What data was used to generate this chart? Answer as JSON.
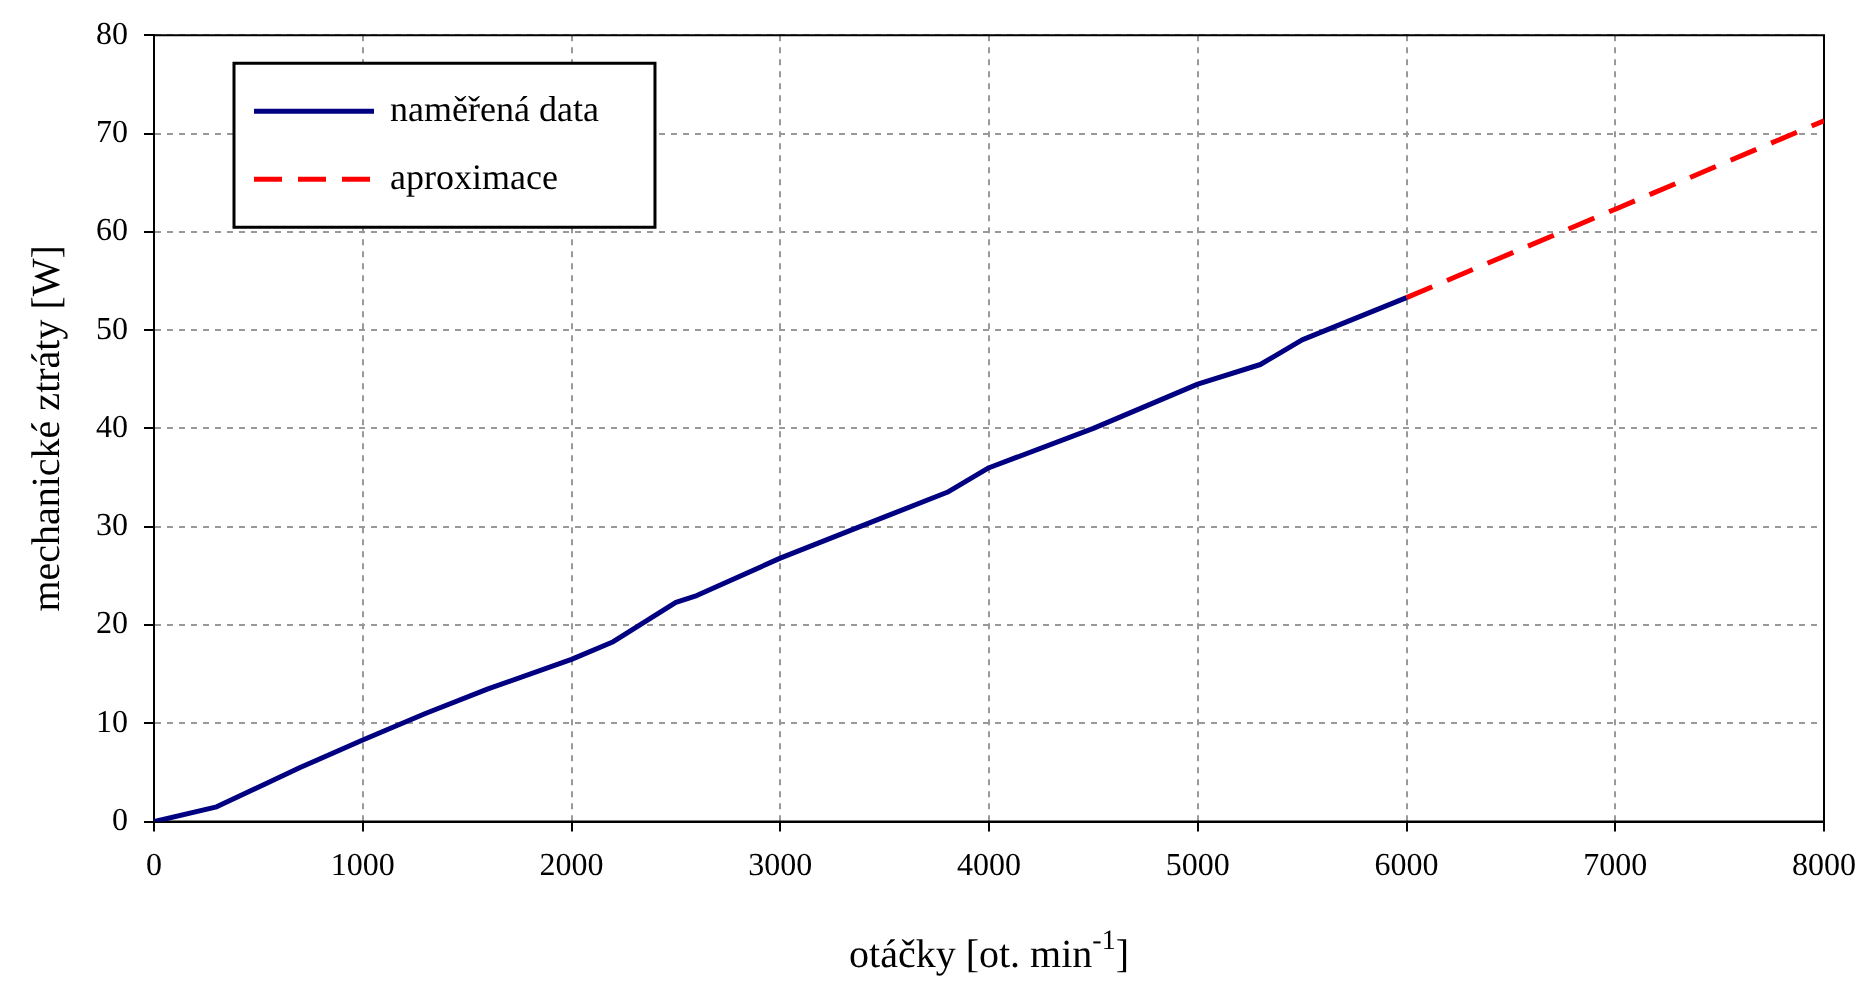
{
  "chart_data": {
    "type": "line",
    "xlabel": "otáčky [ot. min$^{-1}$]",
    "ylabel": "mechanické ztráty [W]",
    "xlim": [
      0,
      8000
    ],
    "xticks": [
      0,
      1000,
      2000,
      3000,
      4000,
      5000,
      6000,
      7000,
      8000
    ],
    "ylim": [
      0,
      80
    ],
    "yticks": [
      0,
      10,
      20,
      30,
      40,
      50,
      60,
      70,
      80
    ],
    "grid": true,
    "legend": "top left",
    "series": [
      {
        "name": "naměřená data",
        "color": "#000080",
        "line_style": "solid",
        "x": [
          0,
          300,
          700,
          1000,
          1300,
          1600,
          2000,
          2200,
          2500,
          2600,
          3000,
          3500,
          3800,
          4000,
          4500,
          5000,
          5300,
          5500,
          6000
        ],
        "values": [
          0,
          1.5,
          5.5,
          8.3,
          11,
          13.5,
          16.5,
          18.3,
          22.3,
          23,
          26.8,
          31,
          33.5,
          36,
          40,
          44.5,
          46.5,
          49,
          53.3
        ]
      },
      {
        "name": "aproximace",
        "color": "#ff0000",
        "line_style": "dashed",
        "x": [
          6000,
          7000,
          8000
        ],
        "values": [
          53.3,
          62.3,
          71.3
        ]
      }
    ]
  }
}
